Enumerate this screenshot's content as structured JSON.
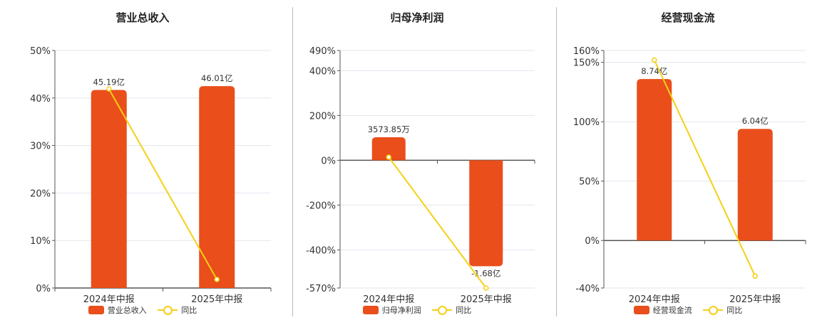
{
  "colors": {
    "bar": "#E94E1B",
    "line": "#F5D014",
    "grid": "#e3e6ef",
    "axis": "#555555"
  },
  "chart_data": [
    {
      "type": "bar",
      "title": "营业总收入",
      "categories": [
        "2024年中报",
        "2025年中报"
      ],
      "series": [
        {
          "name": "营业总收入",
          "type": "bar",
          "values": [
            41.7,
            42.5
          ],
          "labels": [
            "45.19亿",
            "46.01亿"
          ]
        },
        {
          "name": "同比",
          "type": "line",
          "values": [
            41.9,
            1.8
          ]
        }
      ],
      "y_ticks": [
        "50%",
        "40%",
        "30%",
        "20%",
        "10%",
        "0%"
      ],
      "tick_values": [
        50,
        40,
        30,
        20,
        10,
        0
      ],
      "ylim": [
        0,
        50
      ],
      "legend_position": "bottom"
    },
    {
      "type": "bar",
      "title": "归母净利润",
      "categories": [
        "2024年中报",
        "2025年中报"
      ],
      "series": [
        {
          "name": "归母净利润",
          "type": "bar",
          "values": [
            103,
            -473
          ],
          "labels": [
            "3573.85万",
            "-1.68亿"
          ]
        },
        {
          "name": "同比",
          "type": "line",
          "values": [
            14,
            -570
          ]
        }
      ],
      "y_ticks": [
        "490%",
        "400%",
        "200%",
        "0%",
        "-200%",
        "-400%",
        "-570%"
      ],
      "tick_values": [
        490,
        400,
        200,
        0,
        -200,
        -400,
        -570
      ],
      "ylim": [
        -570,
        490
      ],
      "legend_position": "bottom"
    },
    {
      "type": "bar",
      "title": "经营现金流",
      "categories": [
        "2024年中报",
        "2025年中报"
      ],
      "series": [
        {
          "name": "经营现金流",
          "type": "bar",
          "values": [
            136,
            94
          ],
          "labels": [
            "8.74亿",
            "6.04亿"
          ]
        },
        {
          "name": "同比",
          "type": "line",
          "values": [
            152,
            -30
          ]
        }
      ],
      "y_ticks": [
        "160%",
        "150%",
        "100%",
        "50%",
        "0%",
        "-40%"
      ],
      "tick_values": [
        160,
        150,
        100,
        50,
        0,
        -40
      ],
      "ylim": [
        -40,
        160
      ],
      "legend_position": "bottom"
    }
  ],
  "legend_line_label": "同比"
}
